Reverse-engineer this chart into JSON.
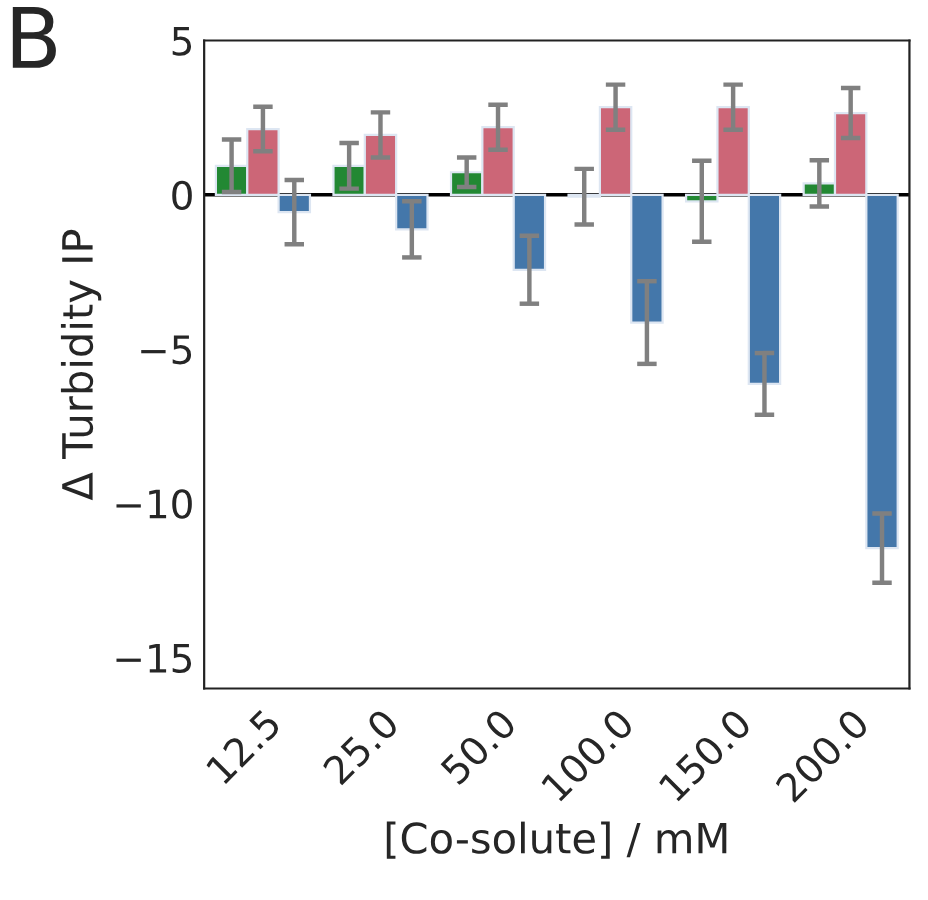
{
  "chart_data": {
    "type": "bar",
    "annotations": [
      "B"
    ],
    "xlabel": "[Co-solute] / mM",
    "ylabel": "Δ Turbidity IP",
    "categories": [
      "12.5",
      "25.0",
      "50.0",
      "100.0",
      "150.0",
      "200.0"
    ],
    "series": [
      {
        "color": "#228833",
        "values": [
          0.94,
          0.94,
          0.73,
          -0.06,
          -0.21,
          0.37
        ],
        "errors": [
          0.85,
          0.74,
          0.48,
          0.9,
          1.31,
          0.75
        ]
      },
      {
        "color": "#cc6677",
        "values": [
          2.13,
          1.94,
          2.19,
          2.84,
          2.84,
          2.65
        ],
        "errors": [
          0.72,
          0.73,
          0.73,
          0.73,
          0.73,
          0.81
        ]
      },
      {
        "color": "#4477aa",
        "values": [
          -0.56,
          -1.12,
          -2.43,
          -4.14,
          -6.13,
          -11.45
        ],
        "errors": [
          1.04,
          0.91,
          1.1,
          1.34,
          1.0,
          1.12
        ]
      }
    ],
    "ylim": [
      -16,
      5
    ],
    "yticks": [
      {
        "value": -15,
        "label": "−15"
      },
      {
        "value": -10,
        "label": "−10"
      },
      {
        "value": -5,
        "label": "−5"
      },
      0,
      5
    ],
    "ref_lines": [
      {
        "axis": "y",
        "value": 0,
        "color": "#000000"
      }
    ],
    "grid": false
  }
}
